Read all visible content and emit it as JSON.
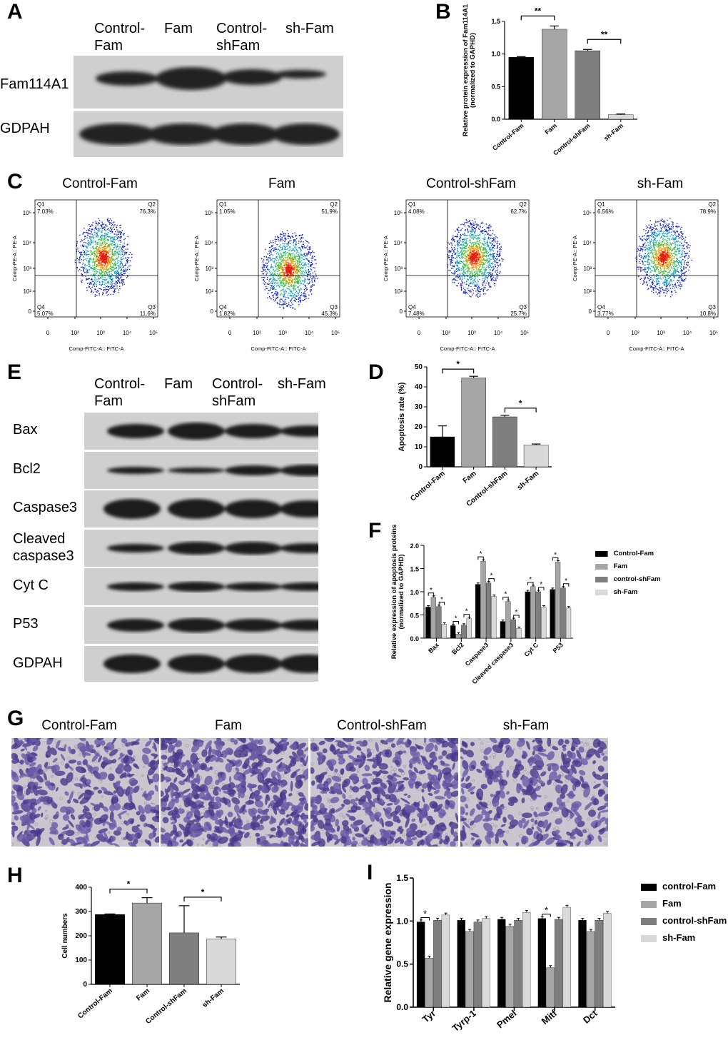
{
  "panels": {
    "A": {
      "letter": "A",
      "columns": [
        "Control-\nFam",
        "Fam",
        "Control-\nshFam",
        "sh-Fam"
      ],
      "rows": [
        "Fam114A1",
        "GDPAH"
      ]
    },
    "B": {
      "letter": "B",
      "chart_data": {
        "type": "bar",
        "ylabel": "Relative protein expression of Fam114A1\n(normalized to GAPHD)",
        "ylabel_lines": [
          "Relative protein expression of Fam114A1",
          "(normalized to GAPHD)"
        ],
        "categories": [
          "Control-Fam",
          "Fam",
          "Control-shFam",
          "sh-Fam"
        ],
        "values": [
          0.95,
          1.38,
          1.05,
          0.07
        ],
        "errors": [
          0.01,
          0.05,
          0.02,
          0.01
        ],
        "colors": [
          "#000000",
          "#a6a6a6",
          "#7f7f7f",
          "#d9d9d9"
        ],
        "ylim": [
          0,
          1.5
        ],
        "yticks": [
          "0.0",
          "0.5",
          "1.0",
          "1.5"
        ],
        "significance": [
          {
            "from": 0,
            "to": 1,
            "label": "**"
          },
          {
            "from": 2,
            "to": 3,
            "label": "**"
          }
        ]
      }
    },
    "C": {
      "letter": "C",
      "xlabel": "Comp-FITC-A:: FITC-A",
      "ylabel": "Comp-PE-A:: PE-A",
      "xticks": [
        "0",
        "10²",
        "10³",
        "10⁴",
        "10⁵"
      ],
      "yticks": [
        "0",
        "10²",
        "10³",
        "10⁴",
        "10⁵"
      ],
      "plots": [
        {
          "title": "Control-Fam",
          "Q1": "7.03%",
          "Q2": "76.3%",
          "Q3": "11.6%",
          "Q4": "5.07%"
        },
        {
          "title": "Fam",
          "Q1": "1.05%",
          "Q2": "51.9%",
          "Q3": "45.3%",
          "Q4": "1.82%"
        },
        {
          "title": "Control-shFam",
          "Q1": "4.08%",
          "Q2": "62.7%",
          "Q3": "25.7%",
          "Q4": "7.48%"
        },
        {
          "title": "sh-Fam",
          "Q1": "6.56%",
          "Q2": "78.9%",
          "Q3": "10.8%",
          "Q4": "3.77%"
        }
      ],
      "quadrant_names": {
        "Q1": "Q1",
        "Q2": "Q2",
        "Q3": "Q3",
        "Q4": "Q4"
      }
    },
    "D": {
      "letter": "D",
      "chart_data": {
        "type": "bar",
        "ylabel": "Apoptosis rate (%)",
        "categories": [
          "Control-Fam",
          "Fam",
          "Control-shFam",
          "sh-Fam"
        ],
        "values": [
          15,
          44.5,
          25,
          11
        ],
        "errors": [
          5.5,
          0.8,
          0.8,
          0.4
        ],
        "colors": [
          "#000000",
          "#a6a6a6",
          "#7f7f7f",
          "#d9d9d9"
        ],
        "ylim": [
          0,
          50
        ],
        "yticks": [
          "0",
          "10",
          "20",
          "30",
          "40",
          "50"
        ],
        "significance": [
          {
            "from": 0,
            "to": 1,
            "label": "*"
          },
          {
            "from": 2,
            "to": 3,
            "label": "*"
          }
        ]
      }
    },
    "E": {
      "letter": "E",
      "columns": [
        "Control-\nFam",
        "Fam",
        "Control-\nshFam",
        "sh-Fam"
      ],
      "rows": [
        "Bax",
        "Bcl2",
        "Caspase3",
        "Cleaved\ncaspase3",
        "Cyt C",
        "P53",
        "GDPAH"
      ]
    },
    "F": {
      "letter": "F",
      "chart_data": {
        "type": "bar",
        "ylabel": "Relative expression of apoptosis proteins\n(normalized to GAPHD)",
        "ylabel_lines": [
          "Relative expression of apoptosis proteins",
          "(normalized to GAPHD)"
        ],
        "categories": [
          "Bax",
          "Bcl2",
          "Caspase3",
          "Cleaved caspase3",
          "Cyt C",
          "P53"
        ],
        "series": [
          {
            "name": "Control-Fam",
            "color": "#000000",
            "values": [
              0.67,
              0.27,
              1.16,
              0.36,
              1.0,
              1.05
            ]
          },
          {
            "name": "Fam",
            "color": "#a6a6a6",
            "values": [
              0.88,
              0.09,
              1.66,
              0.79,
              1.11,
              1.64
            ]
          },
          {
            "name": "control-shFam",
            "color": "#7f7f7f",
            "values": [
              0.68,
              0.28,
              1.19,
              0.4,
              1.0,
              1.08
            ]
          },
          {
            "name": "sh-Fam",
            "color": "#d9d9d9",
            "values": [
              0.3,
              0.42,
              0.9,
              0.21,
              0.67,
              0.65
            ]
          }
        ],
        "ylim": [
          0,
          2.0
        ],
        "yticks": [
          "0.0",
          "0.5",
          "1.0",
          "1.5",
          "2.0"
        ],
        "significance_label": "*"
      }
    },
    "G": {
      "letter": "G",
      "titles": [
        "Control-Fam",
        "Fam",
        "Control-shFam",
        "sh-Fam"
      ]
    },
    "H": {
      "letter": "H",
      "chart_data": {
        "type": "bar",
        "ylabel": "Cell numbers",
        "categories": [
          "Control-Fam",
          "Fam",
          "Control-shFam",
          "sh-Fam"
        ],
        "values": [
          288,
          335,
          212,
          187
        ],
        "errors": [
          2,
          22,
          112,
          8
        ],
        "colors": [
          "#000000",
          "#a6a6a6",
          "#7f7f7f",
          "#d9d9d9"
        ],
        "ylim": [
          0,
          400
        ],
        "yticks": [
          "0",
          "100",
          "200",
          "300",
          "400"
        ],
        "significance": [
          {
            "from": 0,
            "to": 1,
            "label": "*"
          },
          {
            "from": 2,
            "to": 3,
            "label": "*"
          }
        ]
      }
    },
    "I": {
      "letter": "I",
      "chart_data": {
        "type": "bar",
        "ylabel": "Relative gene expression",
        "categories": [
          "Tyr",
          "Tyrp-1",
          "Pmel",
          "Mitf",
          "Dct"
        ],
        "series": [
          {
            "name": "control-Fam",
            "color": "#000000",
            "values": [
              0.99,
              1.01,
              1.02,
              1.03,
              1.01
            ]
          },
          {
            "name": "Fam",
            "color": "#a6a6a6",
            "values": [
              0.57,
              0.88,
              0.94,
              0.46,
              0.88
            ]
          },
          {
            "name": "control-shFam",
            "color": "#7f7f7f",
            "values": [
              1.01,
              0.99,
              1.01,
              1.02,
              1.01
            ]
          },
          {
            "name": "sh-Fam",
            "color": "#d9d9d9",
            "values": [
              1.07,
              1.03,
              1.1,
              1.16,
              1.09
            ]
          }
        ],
        "ylim": [
          0,
          1.5
        ],
        "yticks": [
          "0.0",
          "0.5",
          "1.0",
          "1.5"
        ],
        "significance_label": "*"
      }
    }
  }
}
